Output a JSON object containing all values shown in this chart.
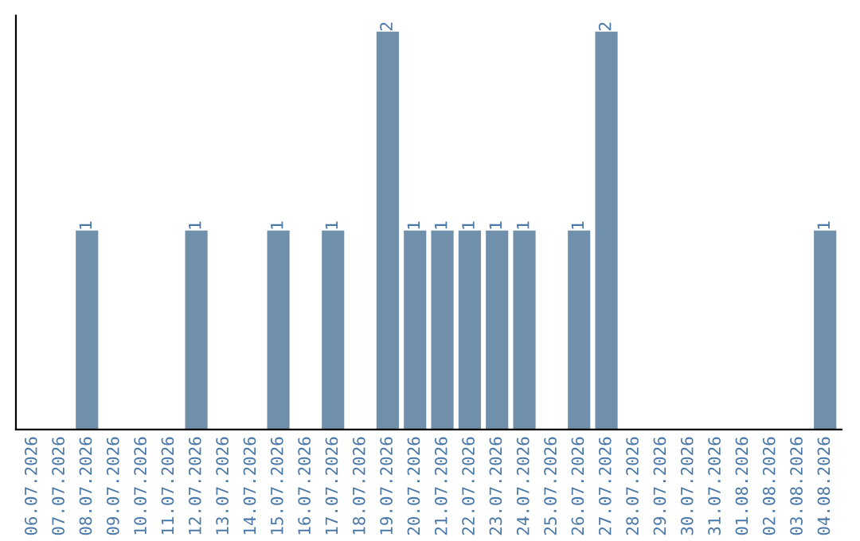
{
  "chart_data": {
    "type": "bar",
    "categories": [
      "06.07.2026",
      "07.07.2026",
      "08.07.2026",
      "09.07.2026",
      "10.07.2026",
      "11.07.2026",
      "12.07.2026",
      "13.07.2026",
      "14.07.2026",
      "15.07.2026",
      "16.07.2026",
      "17.07.2026",
      "18.07.2026",
      "19.07.2026",
      "20.07.2026",
      "21.07.2026",
      "22.07.2026",
      "23.07.2026",
      "24.07.2026",
      "25.07.2026",
      "26.07.2026",
      "27.07.2026",
      "28.07.2026",
      "29.07.2026",
      "30.07.2026",
      "31.07.2026",
      "01.08.2026",
      "02.08.2026",
      "03.08.2026",
      "04.08.2026"
    ],
    "values": [
      0,
      0,
      1,
      0,
      0,
      0,
      1,
      0,
      0,
      1,
      0,
      1,
      0,
      2,
      1,
      1,
      1,
      1,
      1,
      0,
      1,
      2,
      0,
      0,
      0,
      0,
      0,
      0,
      0,
      1
    ],
    "value_labels": [
      null,
      null,
      "1",
      null,
      null,
      null,
      "1",
      null,
      null,
      "1",
      null,
      "1",
      null,
      "2",
      "1",
      "1",
      "1",
      "1",
      "1",
      null,
      "1",
      "2",
      null,
      null,
      null,
      null,
      null,
      null,
      null,
      "1"
    ],
    "color": "#6f8faa",
    "ylim": [
      0,
      2.08
    ],
    "tick_labels": "x",
    "grid": false,
    "legend": false
  }
}
